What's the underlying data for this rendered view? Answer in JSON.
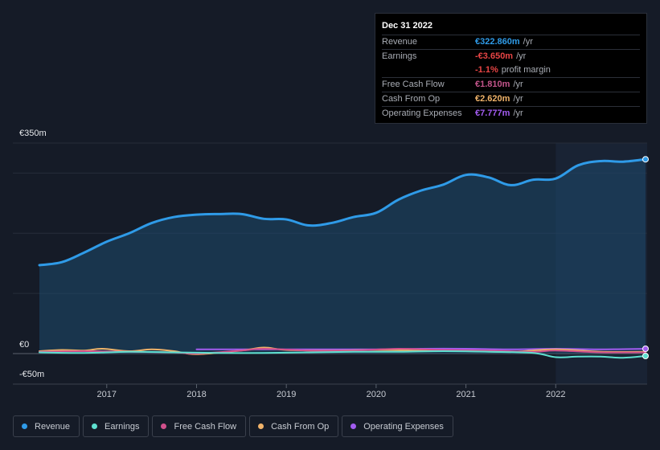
{
  "tooltip": {
    "date": "Dec 31 2022",
    "rows": [
      {
        "label": "Revenue",
        "value": "€322.860m",
        "unit": "/yr",
        "color": "#2f9be8"
      },
      {
        "label": "Earnings",
        "value": "-€3.650m",
        "unit": "/yr",
        "color": "#e84545"
      },
      {
        "label": "",
        "value": "-1.1%",
        "unit": "profit margin",
        "color": "#e84545"
      },
      {
        "label": "Free Cash Flow",
        "value": "€1.810m",
        "unit": "/yr",
        "color": "#c3558b"
      },
      {
        "label": "Cash From Op",
        "value": "€2.620m",
        "unit": "/yr",
        "color": "#f0b36a"
      },
      {
        "label": "Operating Expenses",
        "value": "€7.777m",
        "unit": "/yr",
        "color": "#a25cf0"
      }
    ]
  },
  "legend": [
    {
      "label": "Revenue",
      "color": "#2f9be8"
    },
    {
      "label": "Earnings",
      "color": "#5ee0d0"
    },
    {
      "label": "Free Cash Flow",
      "color": "#d1508c"
    },
    {
      "label": "Cash From Op",
      "color": "#f0b36a"
    },
    {
      "label": "Operating Expenses",
      "color": "#a25cf0"
    }
  ],
  "chart_data": {
    "type": "line",
    "ylim": [
      -50,
      350
    ],
    "y_tick_labels": [
      "€350m",
      "€0",
      "-€50m"
    ],
    "x_tick_labels": [
      "2017",
      "2018",
      "2019",
      "2020",
      "2021",
      "2022"
    ],
    "x_ticks": [
      2017,
      2018,
      2019,
      2020,
      2021,
      2022
    ],
    "xlim": [
      2016.15,
      2023.0
    ],
    "highlight_from": 2022.0,
    "series": [
      {
        "name": "Revenue",
        "color": "#2f9be8",
        "area": true,
        "end_marker": true,
        "x": [
          2016.25,
          2016.5,
          2016.75,
          2017.0,
          2017.25,
          2017.5,
          2017.75,
          2018.0,
          2018.25,
          2018.5,
          2018.75,
          2019.0,
          2019.25,
          2019.5,
          2019.75,
          2020.0,
          2020.25,
          2020.5,
          2020.75,
          2021.0,
          2021.25,
          2021.5,
          2021.75,
          2022.0,
          2022.25,
          2022.5,
          2022.75,
          2023.0
        ],
        "y": [
          147,
          152,
          168,
          186,
          200,
          217,
          227,
          231,
          232,
          232,
          224,
          223,
          213,
          217,
          227,
          234,
          256,
          271,
          281,
          297,
          293,
          280,
          289,
          291,
          313,
          320,
          319,
          323
        ]
      },
      {
        "name": "Earnings",
        "color": "#5ee0d0",
        "area": false,
        "end_marker": true,
        "x": [
          2016.25,
          2016.75,
          2017.25,
          2017.75,
          2018.25,
          2018.75,
          2019.25,
          2019.75,
          2020.25,
          2020.75,
          2021.25,
          2021.75,
          2022.0,
          2022.25,
          2022.5,
          2022.75,
          2023.0
        ],
        "y": [
          2,
          1,
          3,
          2,
          1,
          1,
          2,
          3,
          3,
          4,
          3,
          1,
          -6,
          -5,
          -5,
          -7,
          -4
        ]
      },
      {
        "name": "Free Cash Flow",
        "color": "#d1508c",
        "area": false,
        "end_marker": false,
        "x": [
          2016.25,
          2016.75,
          2017.25,
          2017.75,
          2018.0,
          2018.5,
          2018.75,
          2019.25,
          2019.75,
          2020.25,
          2020.75,
          2021.25,
          2021.75,
          2022.0,
          2022.5,
          2023.0
        ],
        "y": [
          3,
          4,
          3,
          2,
          0,
          5,
          8,
          5,
          5,
          8,
          6,
          5,
          3,
          5,
          2,
          2
        ]
      },
      {
        "name": "Cash From Op",
        "color": "#f0b36a",
        "area": false,
        "end_marker": false,
        "x": [
          2016.25,
          2016.5,
          2016.75,
          2016.95,
          2017.25,
          2017.5,
          2017.75,
          2018.0,
          2018.5,
          2018.75,
          2019.0,
          2019.5,
          2020.0,
          2020.5,
          2021.0,
          2021.5,
          2022.0,
          2022.5,
          2023.0
        ],
        "y": [
          4,
          6,
          5,
          8,
          4,
          7,
          4,
          -1,
          5,
          10,
          6,
          5,
          6,
          5,
          4,
          3,
          7,
          3,
          3
        ]
      },
      {
        "name": "Operating Expenses",
        "color": "#a25cf0",
        "area": false,
        "end_marker": true,
        "x": [
          2018.0,
          2018.5,
          2019.0,
          2019.5,
          2020.0,
          2020.5,
          2021.0,
          2021.5,
          2022.0,
          2022.5,
          2023.0
        ],
        "y": [
          7,
          7,
          7,
          7,
          7,
          8,
          8,
          7,
          8,
          7,
          8
        ]
      }
    ]
  }
}
